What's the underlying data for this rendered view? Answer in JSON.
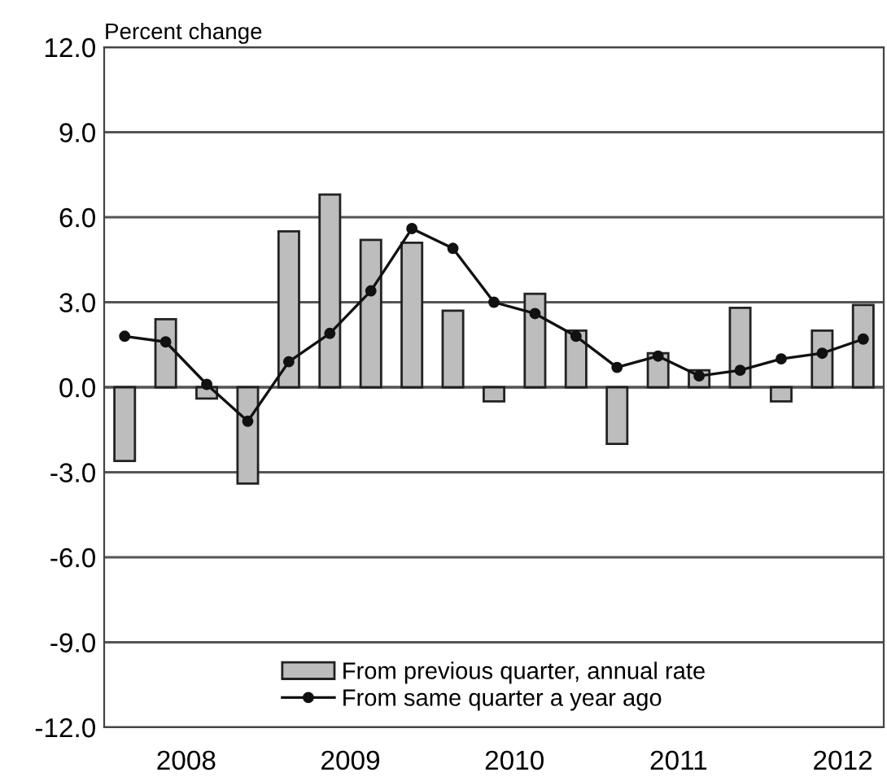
{
  "chart_data": {
    "type": "bar",
    "ylabel": "Percent change",
    "x": [
      2008.125,
      2008.375,
      2008.625,
      2008.875,
      2009.125,
      2009.375,
      2009.625,
      2009.875,
      2010.125,
      2010.375,
      2010.625,
      2010.875,
      2011.125,
      2011.375,
      2011.625,
      2011.875,
      2012.125,
      2012.375,
      2012.625
    ],
    "xlim": [
      2008,
      2012.75
    ],
    "xticks": [
      {
        "value": 2008.5,
        "label": "2008"
      },
      {
        "value": 2009.5,
        "label": "2009"
      },
      {
        "value": 2010.5,
        "label": "2010"
      },
      {
        "value": 2011.5,
        "label": "2011"
      },
      {
        "value": 2012.5,
        "label": "2012"
      }
    ],
    "ylim": [
      -12,
      12
    ],
    "yticks": [
      {
        "value": -12,
        "label": "-12.0"
      },
      {
        "value": -9,
        "label": "-9.0"
      },
      {
        "value": -6,
        "label": "-6.0"
      },
      {
        "value": -3,
        "label": "-3.0"
      },
      {
        "value": 0,
        "label": "0.0"
      },
      {
        "value": 3,
        "label": "3.0"
      },
      {
        "value": 6,
        "label": "6.0"
      },
      {
        "value": 9,
        "label": "9.0"
      },
      {
        "value": 12,
        "label": "12.0"
      }
    ],
    "grid": "y",
    "legend": "bottom",
    "series": [
      {
        "name": "From previous quarter, annual rate",
        "color": "#bdbdbd",
        "values": [
          -2.6,
          2.4,
          -0.4,
          -3.4,
          5.5,
          6.8,
          5.2,
          5.1,
          2.7,
          -0.5,
          3.3,
          2.0,
          -2.0,
          1.2,
          0.6,
          2.8,
          -0.5,
          2.0,
          2.9
        ]
      },
      {
        "name": "From same quarter a year ago",
        "type": "line",
        "color": "#111111",
        "marker": "circle",
        "values": [
          1.8,
          1.6,
          0.1,
          -1.2,
          0.9,
          1.9,
          3.4,
          5.6,
          4.9,
          3.0,
          2.6,
          1.8,
          0.7,
          1.1,
          0.4,
          0.6,
          1.0,
          1.2,
          1.7
        ]
      }
    ]
  }
}
